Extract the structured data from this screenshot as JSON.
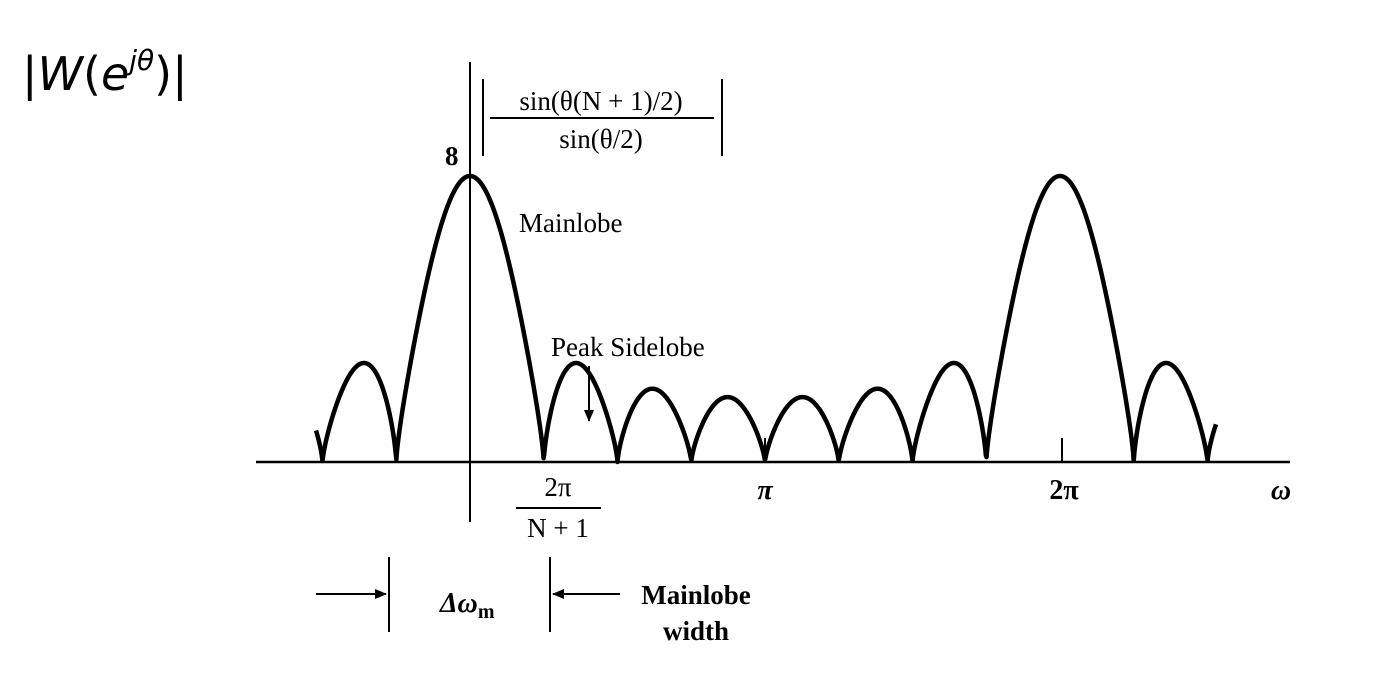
{
  "figure": {
    "ylabel": {
      "bar_left": "|",
      "W": "W",
      "paren_open": "(",
      "e": "e",
      "exponent": "jθ",
      "paren_close": ")",
      "bar_right": "|"
    },
    "formula": {
      "numerator": "sin(θ(N + 1)/2)",
      "denominator": "sin(θ/2)"
    },
    "peak_value_label": "8",
    "annotations": {
      "mainlobe": "Mainlobe",
      "peak_sidelobe": "Peak Sidelobe"
    },
    "ticks": {
      "two_pi_over_numerator": "2π",
      "two_pi_over_denominator": "N + 1",
      "pi": "π",
      "two_pi": "2π",
      "omega": "ω"
    },
    "width_marker": {
      "delta": "Δω",
      "delta_sub": "m",
      "label_line1": "Mainlobe",
      "label_line2": "width"
    },
    "curve": {
      "peak": 8,
      "period": "2π",
      "lobes_between_peaks": 6
    },
    "colors": {
      "ink": "#000000",
      "background": "#ffffff"
    }
  }
}
